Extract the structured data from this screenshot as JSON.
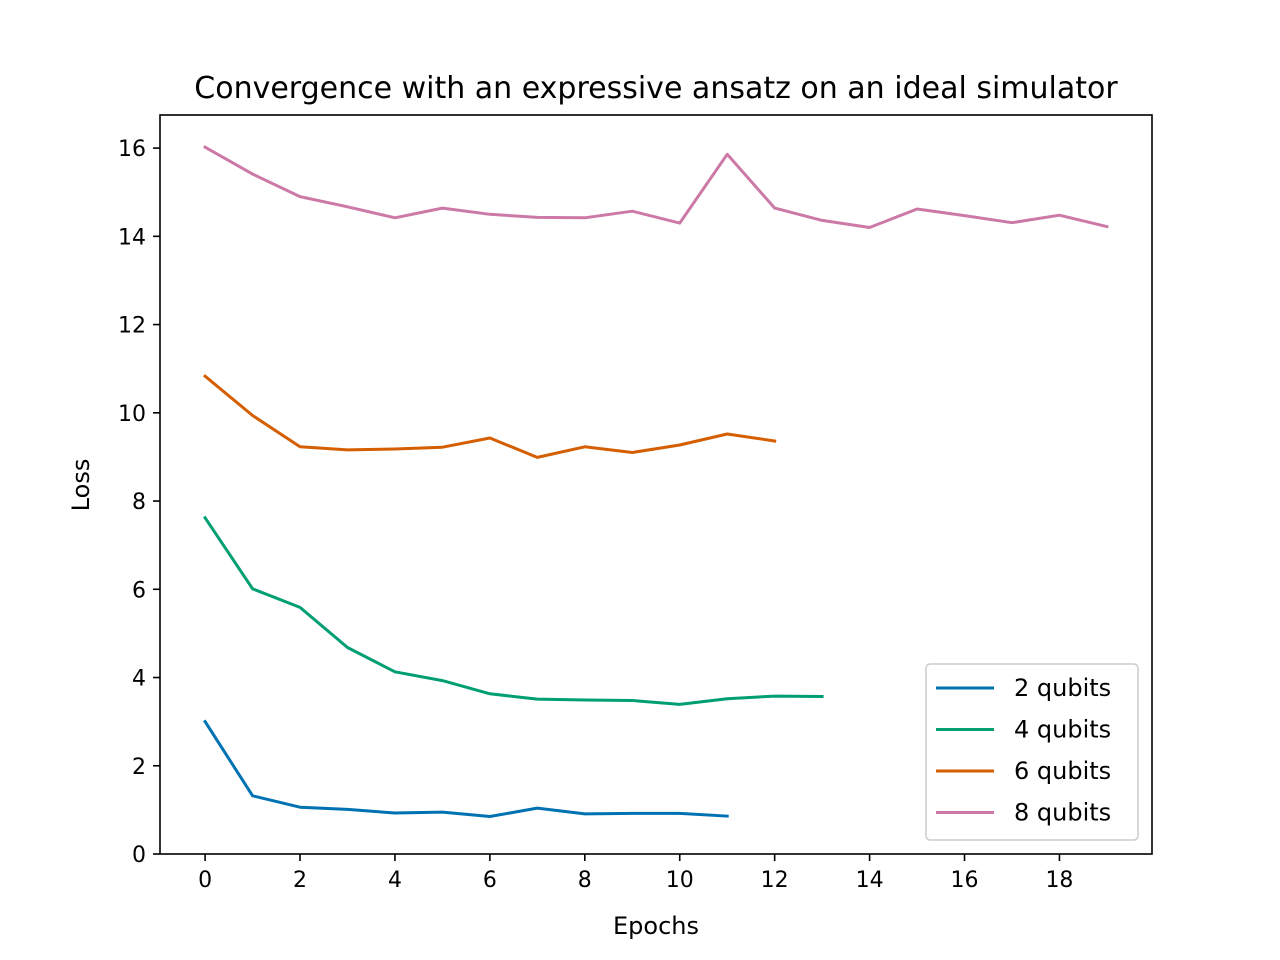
{
  "chart_data": {
    "type": "line",
    "title": "Convergence with an expressive ansatz on an ideal simulator",
    "xlabel": "Epochs",
    "ylabel": "Loss",
    "xlim": [
      -0.95,
      19.95
    ],
    "ylim": [
      0,
      16.75
    ],
    "xticks": [
      "0",
      "2",
      "4",
      "6",
      "8",
      "10",
      "12",
      "14",
      "16",
      "18"
    ],
    "yticks": [
      "0",
      "2",
      "4",
      "6",
      "8",
      "10",
      "12",
      "14",
      "16"
    ],
    "grid": false,
    "legend_position": "lower-right",
    "series": [
      {
        "name": "2 qubits",
        "color": "#0072B2",
        "x": [
          0,
          1,
          2,
          3,
          4,
          5,
          6,
          7,
          8,
          9,
          10,
          11
        ],
        "y": [
          3.0,
          1.32,
          1.06,
          1.01,
          0.93,
          0.95,
          0.85,
          1.04,
          0.91,
          0.92,
          0.92,
          0.86
        ]
      },
      {
        "name": "4 qubits",
        "color": "#009E73",
        "x": [
          0,
          1,
          2,
          3,
          4,
          5,
          6,
          7,
          8,
          9,
          10,
          11,
          12,
          13
        ],
        "y": [
          7.62,
          6.01,
          5.59,
          4.68,
          4.13,
          3.93,
          3.63,
          3.51,
          3.49,
          3.48,
          3.39,
          3.52,
          3.58,
          3.57
        ]
      },
      {
        "name": "6 qubits",
        "color": "#D55E00",
        "x": [
          0,
          1,
          2,
          3,
          4,
          5,
          6,
          7,
          8,
          9,
          10,
          11,
          12
        ],
        "y": [
          10.83,
          9.94,
          9.23,
          9.16,
          9.18,
          9.22,
          9.43,
          8.99,
          9.23,
          9.1,
          9.27,
          9.52,
          9.36
        ]
      },
      {
        "name": "8 qubits",
        "color": "#CC79A7",
        "x": [
          0,
          1,
          2,
          3,
          4,
          5,
          6,
          7,
          8,
          9,
          10,
          11,
          12,
          13,
          14,
          15,
          16,
          17,
          18,
          19
        ],
        "y": [
          16.02,
          15.41,
          14.9,
          14.67,
          14.42,
          14.64,
          14.5,
          14.43,
          14.42,
          14.57,
          14.3,
          15.86,
          14.64,
          14.36,
          14.2,
          14.62,
          14.47,
          14.31,
          14.48,
          14.22
        ]
      }
    ]
  }
}
